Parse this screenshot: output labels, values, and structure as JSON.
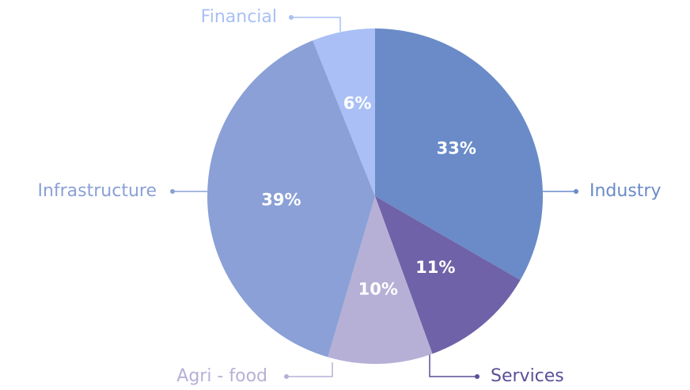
{
  "chart_data": {
    "type": "pie",
    "categories": [
      "Industry",
      "Services",
      "Agri - food",
      "Infrastructure",
      "Financial"
    ],
    "values": [
      33,
      11,
      10,
      39,
      6
    ],
    "value_labels": [
      "33%",
      "11%",
      "10%",
      "39%",
      "6%"
    ],
    "colors": [
      "#6a8bc8",
      "#6f62a8",
      "#b6b0d6",
      "#8aa0d6",
      "#a9bff5"
    ],
    "label_colors": [
      "#6a8bc8",
      "#5a4f98",
      "#b6b0d6",
      "#8aa0d6",
      "#a9bff5"
    ]
  }
}
